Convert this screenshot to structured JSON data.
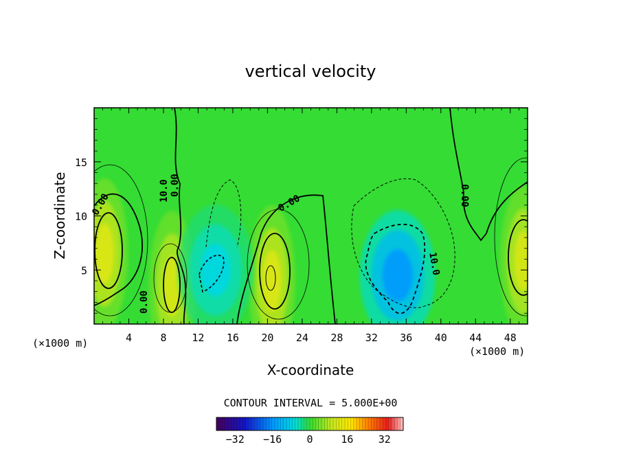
{
  "chart_data": {
    "type": "heatmap",
    "title": "vertical velocity",
    "xlabel": "X-coordinate",
    "ylabel": "Z-coordinate",
    "x_unit": "(×1000 m)",
    "y_unit": "(×1000 m)",
    "xlim": [
      0,
      50
    ],
    "ylim": [
      0,
      20
    ],
    "x_ticks": [
      4,
      8,
      12,
      16,
      20,
      24,
      28,
      32,
      36,
      40,
      44,
      48
    ],
    "y_ticks": [
      5,
      10,
      15
    ],
    "contour_interval": "CONTOUR INTERVAL = 5.000E+00",
    "contour_labels": [
      "0.00",
      "0.00",
      "0.00",
      "0.00",
      "0.00",
      "10.0",
      "10.0"
    ],
    "colorbar": {
      "range": [
        -40,
        40
      ],
      "ticks": [
        -32,
        -16,
        0,
        16,
        32
      ]
    },
    "features": [
      {
        "kind": "updraft",
        "x": 1.2,
        "z": 6.5,
        "w": 12
      },
      {
        "kind": "updraft",
        "x": 9.0,
        "z": 3.5,
        "w": 11
      },
      {
        "kind": "updraft",
        "x": 20.5,
        "z": 4.0,
        "w": 12
      },
      {
        "kind": "updraft",
        "x": 49.5,
        "z": 5.8,
        "w": 11
      },
      {
        "kind": "downdraft",
        "x": 14.0,
        "z": 5.0,
        "w": -7
      },
      {
        "kind": "downdraft",
        "x": 35.0,
        "z": 4.5,
        "w": -15
      }
    ],
    "colors": {
      "background_field": "#33dd33",
      "axes": "#000000"
    }
  }
}
